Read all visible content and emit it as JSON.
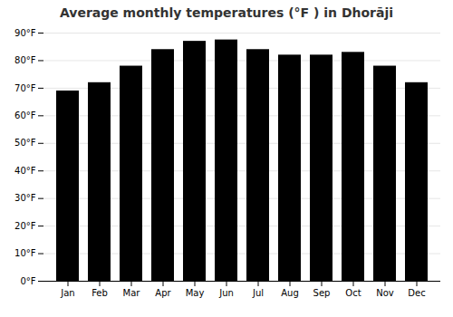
{
  "chart_data": {
    "type": "bar",
    "title": "Average monthly temperatures (°F ) in Dhorāji",
    "categories": [
      "Jan",
      "Feb",
      "Mar",
      "Apr",
      "May",
      "Jun",
      "Jul",
      "Aug",
      "Sep",
      "Oct",
      "Nov",
      "Dec"
    ],
    "values": [
      69,
      72,
      78,
      84,
      87,
      87.5,
      84,
      82,
      82,
      83,
      78,
      72
    ],
    "ylim": [
      0,
      90
    ],
    "yticks": [
      {
        "value": 0,
        "label": "0°F"
      },
      {
        "value": 10,
        "label": "10°F"
      },
      {
        "value": 20,
        "label": "20°F"
      },
      {
        "value": 30,
        "label": "30°F"
      },
      {
        "value": 40,
        "label": "40°F"
      },
      {
        "value": 50,
        "label": "50°F"
      },
      {
        "value": 60,
        "label": "60°F"
      },
      {
        "value": 70,
        "label": "70°F"
      },
      {
        "value": 80,
        "label": "80°F"
      },
      {
        "value": 90,
        "label": "90°F"
      }
    ],
    "grid": true
  }
}
